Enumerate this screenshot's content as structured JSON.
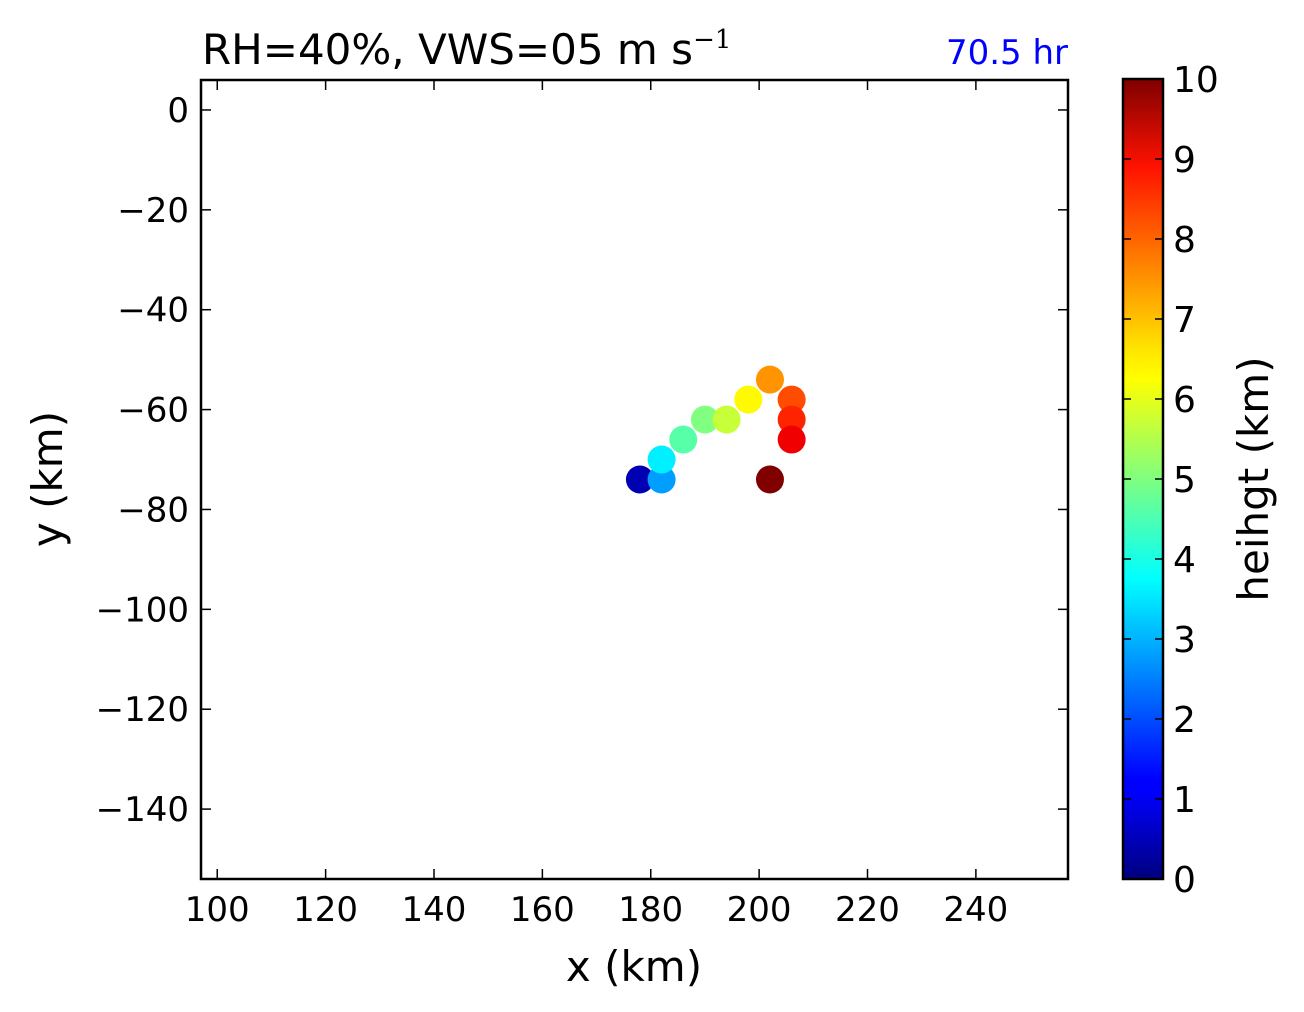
{
  "chart_data": {
    "type": "scatter",
    "title": {
      "main": "RH=40%, VWS=05 m s",
      "superscript": "−1"
    },
    "time_label": "70.5 hr",
    "time_label_color": "#0000ff",
    "xlabel": "x (km)",
    "ylabel": "y (km)",
    "xlim": [
      97,
      257
    ],
    "ylim": [
      -154,
      6
    ],
    "xticks": [
      100,
      120,
      140,
      160,
      180,
      200,
      220,
      240
    ],
    "yticks": [
      0,
      -20,
      -40,
      -60,
      -80,
      -100,
      -120,
      -140
    ],
    "xtick_labels": [
      "100",
      "120",
      "140",
      "160",
      "180",
      "200",
      "220",
      "240"
    ],
    "ytick_labels": [
      "0",
      "−20",
      "−40",
      "−60",
      "−80",
      "−100",
      "−120",
      "−140"
    ],
    "points": [
      {
        "x": 178,
        "y": -74,
        "height": 0.5
      },
      {
        "x": 182,
        "y": -74,
        "height": 2.8
      },
      {
        "x": 182,
        "y": -70,
        "height": 3.6
      },
      {
        "x": 186,
        "y": -66,
        "height": 4.6
      },
      {
        "x": 190,
        "y": -62,
        "height": 5.0
      },
      {
        "x": 194,
        "y": -62,
        "height": 5.7
      },
      {
        "x": 198,
        "y": -58,
        "height": 6.3
      },
      {
        "x": 202,
        "y": -54,
        "height": 7.3
      },
      {
        "x": 206,
        "y": -58,
        "height": 8.0
      },
      {
        "x": 206,
        "y": -62,
        "height": 8.4
      },
      {
        "x": 206,
        "y": -66,
        "height": 8.9
      },
      {
        "x": 202,
        "y": -74,
        "height": 10.0
      }
    ],
    "colorbar": {
      "label": "heihgt (km)",
      "colormap": "jet",
      "min": 0,
      "max": 10,
      "ticks": [
        0,
        1,
        2,
        3,
        4,
        5,
        6,
        7,
        8,
        9,
        10
      ],
      "tick_labels": [
        "0",
        "1",
        "2",
        "3",
        "4",
        "5",
        "6",
        "7",
        "8",
        "9",
        "10"
      ]
    }
  }
}
